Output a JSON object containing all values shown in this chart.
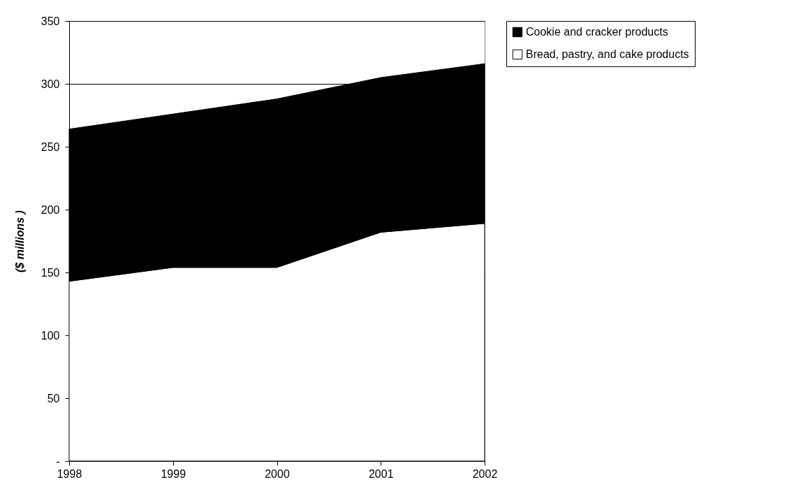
{
  "chart_data": {
    "type": "area",
    "stacked": true,
    "ylabel": "($ millions )",
    "x": [
      1998,
      1999,
      2000,
      2001,
      2002
    ],
    "xlim": [
      1998,
      2002
    ],
    "xticks": [
      1998,
      1999,
      2000,
      2001,
      2002
    ],
    "ylim": [
      0,
      350
    ],
    "yticks": [
      {
        "value": 0,
        "label": "-"
      },
      50,
      100,
      150,
      200,
      250,
      300,
      350
    ],
    "grid": "y",
    "legend": "right",
    "series": [
      {
        "name": "Bread, pastry, and cake products",
        "color": "#ffffff",
        "values": [
          143,
          154,
          154,
          182,
          189
        ]
      },
      {
        "name": "Cookie and cracker products",
        "color": "#000000",
        "values": [
          121,
          122,
          134,
          123,
          127
        ]
      }
    ]
  }
}
